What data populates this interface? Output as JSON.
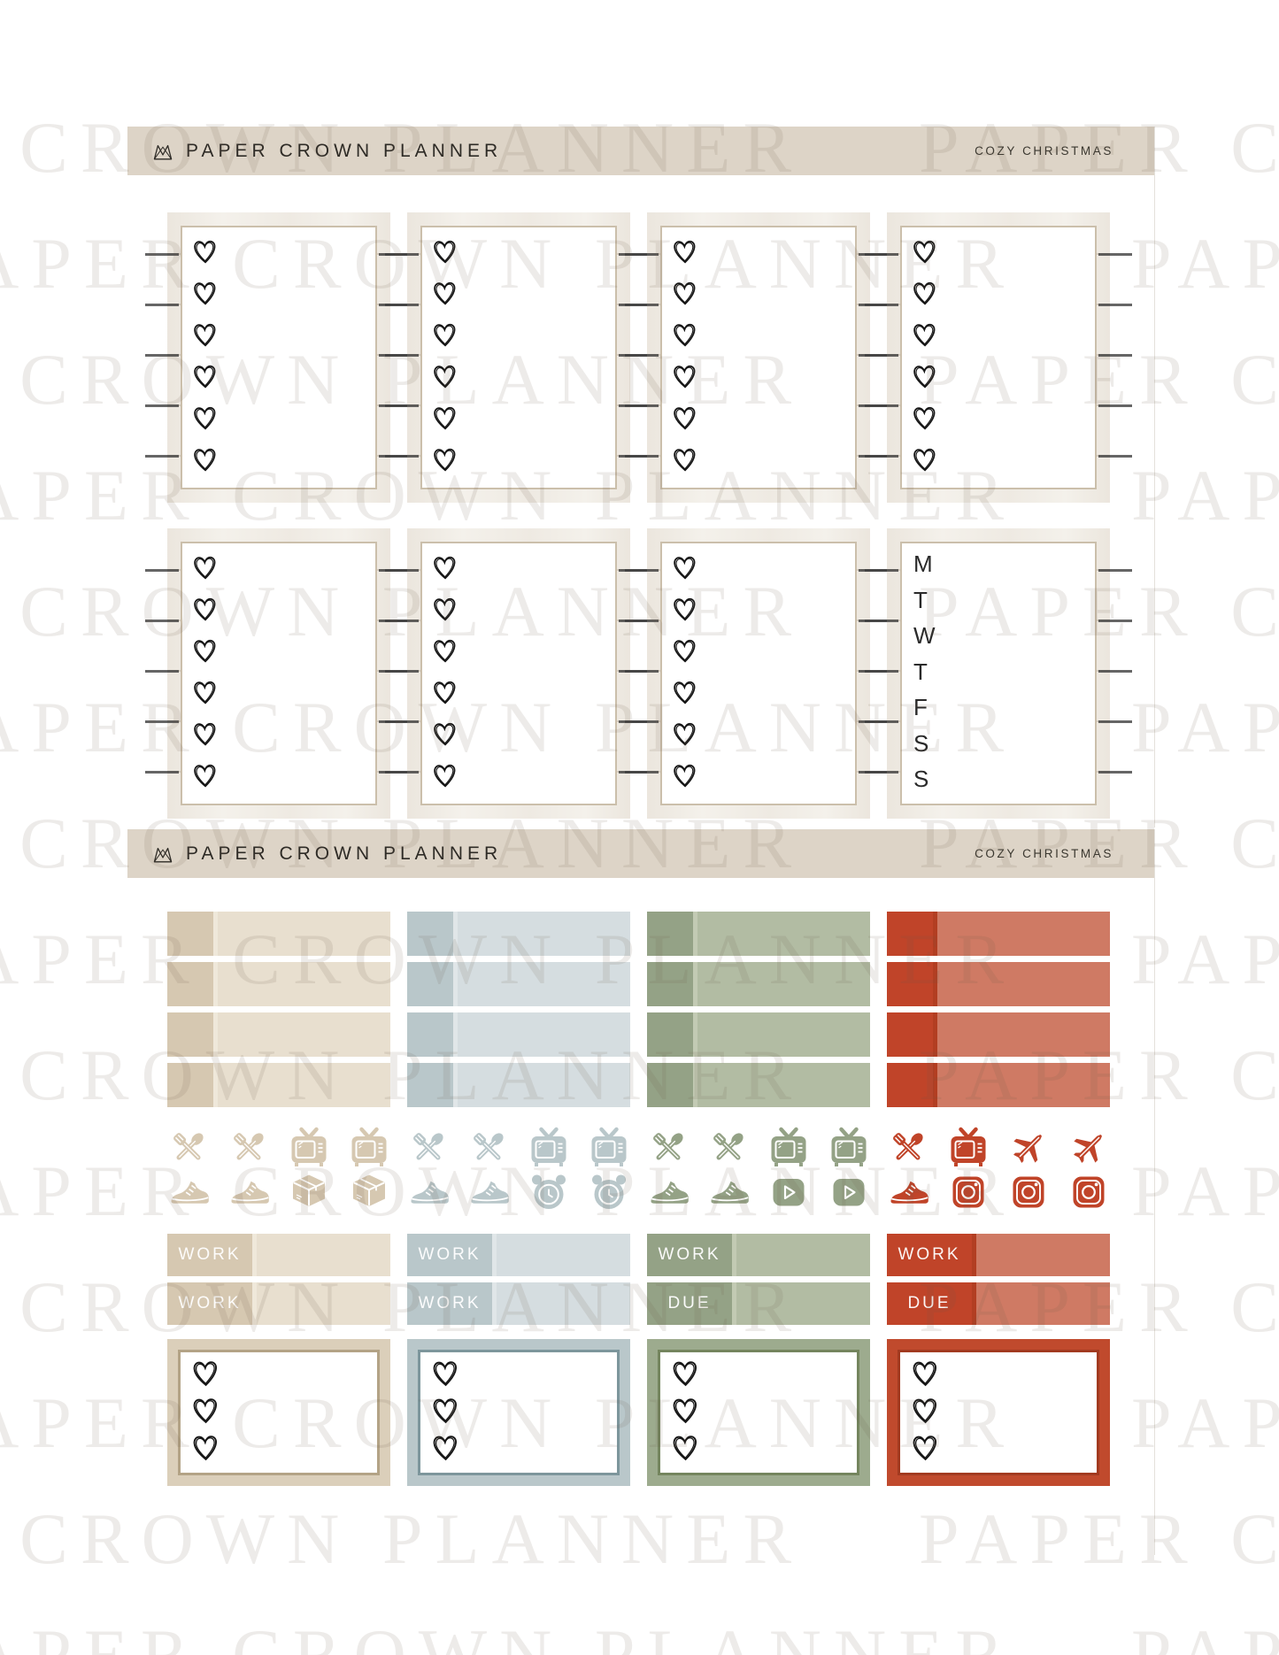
{
  "brand": {
    "name": "PAPER CROWN PLANNER",
    "collection": "COZY CHRISTMAS"
  },
  "watermark": {
    "text": "PAPER CROWN PLANNER"
  },
  "palette": {
    "header_band": "#ddd4c7",
    "header_text": "#2e2b26",
    "wood_base": "#f4f1eb",
    "full_box_border": "#cbbfab",
    "tick_mark": "#3f3f3f",
    "heart_stroke": "#161616"
  },
  "sheet1": {
    "full_box_count": 8,
    "hearts_per_box": 6,
    "weekday_letters": [
      "M",
      "T",
      "W",
      "T",
      "F",
      "S",
      "S"
    ]
  },
  "sheet2": {
    "strip_rows_per_column": 4,
    "hearts_per_half_box": 3,
    "columns": [
      {
        "name": "beige",
        "colors": {
          "dark": "#d6c8b1",
          "light": "#e8dfcf",
          "frame": "#dbcfba",
          "inner_border": "#b3a386"
        },
        "icons": [
          [
            "utensils",
            "utensils",
            "tv",
            "tv"
          ],
          [
            "shoe",
            "shoe",
            "box",
            "box"
          ]
        ],
        "labels": [
          "WORK",
          "WORK"
        ]
      },
      {
        "name": "blue",
        "colors": {
          "dark": "#b9c7ca",
          "light": "#d5dde0",
          "frame": "#b9c7ca",
          "inner_border": "#7d969c"
        },
        "icons": [
          [
            "utensils",
            "utensils",
            "tv",
            "tv"
          ],
          [
            "shoe",
            "shoe",
            "clock",
            "clock"
          ]
        ],
        "labels": [
          "WORK",
          "WORK"
        ]
      },
      {
        "name": "green",
        "colors": {
          "dark": "#94a286",
          "light": "#b2bca3",
          "frame": "#9dab8e",
          "inner_border": "#74855e"
        },
        "icons": [
          [
            "utensils",
            "utensils",
            "tv",
            "tv"
          ],
          [
            "shoe",
            "shoe",
            "play",
            "play"
          ]
        ],
        "labels": [
          "WORK",
          "DUE"
        ]
      },
      {
        "name": "red",
        "colors": {
          "dark": "#c04429",
          "light": "#cf7a64",
          "frame": "#c04a2d",
          "inner_border": "#a23a20"
        },
        "icons": [
          [
            "utensils",
            "tv",
            "plane",
            "plane"
          ],
          [
            "shoe",
            "instagram",
            "instagram",
            "instagram"
          ]
        ],
        "labels": [
          "WORK",
          "DUE"
        ]
      }
    ]
  }
}
